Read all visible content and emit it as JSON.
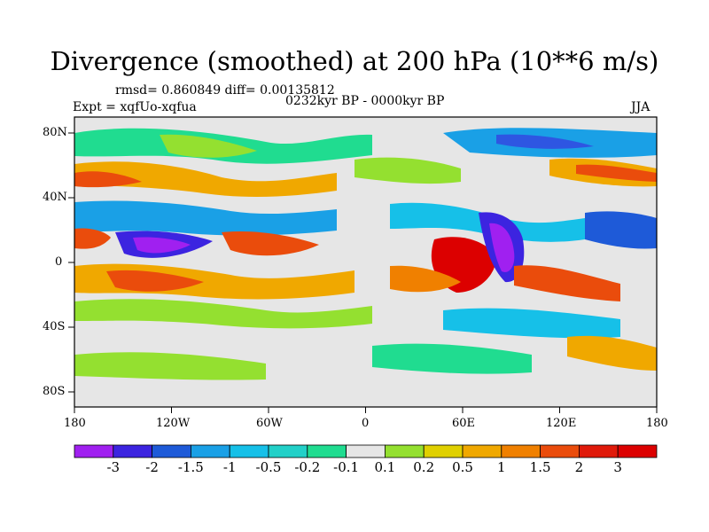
{
  "title": "Divergence (smoothed) at 200 hPa (10**6 m/s)",
  "stats": "rmsd= 0.860849 diff= 0.00135812",
  "period": "0232kyr BP - 0000kyr BP",
  "experiment": "Expt = xqfUo-xqfua",
  "season": "JJA",
  "lat_labels": [
    "80N",
    "40N",
    "0",
    "40S",
    "80S"
  ],
  "lon_labels": [
    "180",
    "120W",
    "60W",
    "0",
    "60E",
    "120E",
    "180"
  ],
  "colorbar": {
    "labels": [
      "-3",
      "-2",
      "-1.5",
      "-1",
      "-0.5",
      "-0.2",
      "-0.1",
      "0.1",
      "0.2",
      "0.5",
      "1",
      "1.5",
      "2",
      "3"
    ],
    "colors": [
      "#a020f0",
      "#3c24e0",
      "#1e5ad8",
      "#1aa0e6",
      "#16c0e8",
      "#22d0c8",
      "#20dc90",
      "#e6e6e6",
      "#94e030",
      "#e0d000",
      "#f0a800",
      "#f08000",
      "#ea4c0c",
      "#e01a0a",
      "#dc0000"
    ]
  }
}
